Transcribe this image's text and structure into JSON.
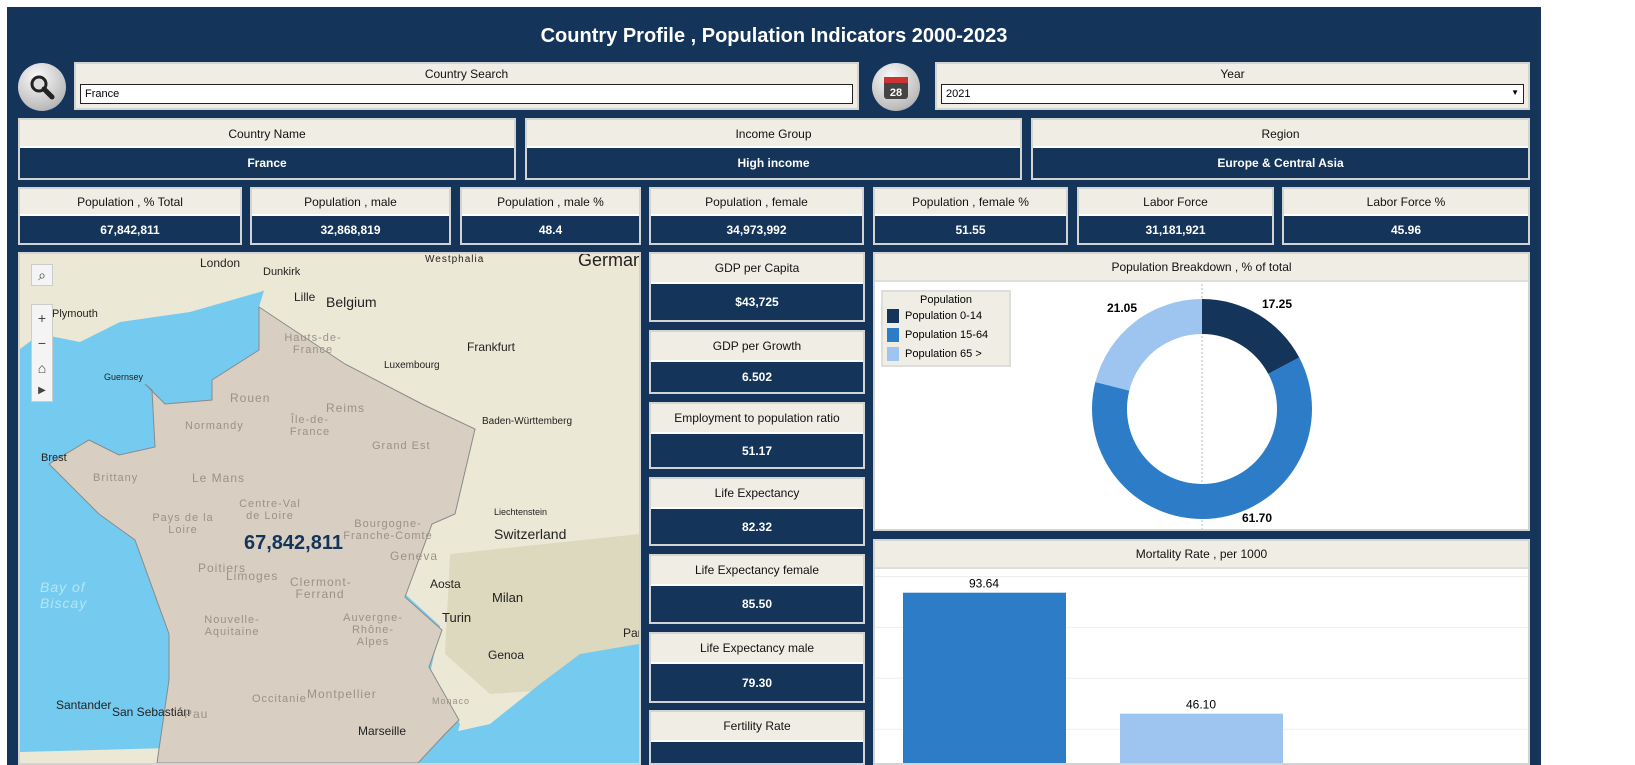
{
  "title": "Country Profile , Population Indicators 2000-2023",
  "search": {
    "label": "Country Search",
    "value": "France",
    "icon": "magnifier-icon"
  },
  "year": {
    "label": "Year",
    "value": "2021",
    "icon": "calendar-icon",
    "calendar_day": "28"
  },
  "info": [
    {
      "label": "Country Name",
      "value": "France"
    },
    {
      "label": "Income Group",
      "value": "High income"
    },
    {
      "label": "Region",
      "value": "Europe & Central Asia"
    }
  ],
  "kpis": [
    {
      "label": "Population , % Total",
      "value": "67,842,811"
    },
    {
      "label": "Population , male",
      "value": "32,868,819"
    },
    {
      "label": "Population , male %",
      "value": "48.4"
    },
    {
      "label": "Population , female",
      "value": "34,973,992"
    },
    {
      "label": "Population , female %",
      "value": "51.55"
    },
    {
      "label": "Labor Force",
      "value": "31,181,921"
    },
    {
      "label": "Labor Force %",
      "value": "45.96"
    }
  ],
  "side_kpis": [
    {
      "label": "GDP per Capita",
      "value": "$43,725"
    },
    {
      "label": "GDP per Growth",
      "value": "6.502"
    },
    {
      "label": "Employment to population ratio",
      "value": "51.17"
    },
    {
      "label": "Life Expectancy",
      "value": "82.32"
    },
    {
      "label": "Life Expectancy female",
      "value": "85.50"
    },
    {
      "label": "Life Expectancy male",
      "value": "79.30"
    },
    {
      "label": "Fertility Rate",
      "value": ""
    }
  ],
  "map": {
    "value_label": "67,842,811",
    "places": [
      "London",
      "Dunkirk",
      "Lille",
      "Belgium",
      "Westphalia",
      "Germany",
      "Plymouth",
      "Guernsey",
      "Frankfurt",
      "Luxembourg",
      "Rouen",
      "Reims",
      "Normandy",
      "Grand Est",
      "Baden-Württemberg",
      "Brest",
      "Brittany",
      "Le Mans",
      "Centre-Val de Loire",
      "Pays de la Loire",
      "Bourgogne-Franche-Comté",
      "Liechtenstein",
      "Switzerland",
      "Poitiers",
      "Geneva",
      "Clermont-Ferrand",
      "Limoges",
      "Aosta",
      "Milan",
      "Turin",
      "Nouvelle-Aquitaine",
      "Auvergne-Rhône-Alpes",
      "Genoa",
      "Santander",
      "San Sebastián",
      "Pau",
      "Occitanie",
      "Montpellier",
      "Monaco",
      "Marseille",
      "Bay of Biscay",
      "Hauts-de-France",
      "Île-de-France",
      "Par"
    ],
    "colors": {
      "sea": "#74cbef",
      "land": "#ece8d6",
      "country": "#d8cfc2"
    }
  },
  "chart_data": [
    {
      "type": "pie",
      "title": "Population Breakdown , % of total",
      "legend_title": "Population",
      "legend_position": "top-left",
      "categories": [
        "Population 0-14",
        "Population 15-64",
        "Population 65 >"
      ],
      "values": [
        17.25,
        61.7,
        21.05
      ],
      "value_labels": [
        "17.25",
        "61.70",
        "21.05"
      ],
      "colors": [
        "#14345a",
        "#2c7cc8",
        "#9ec5ef"
      ],
      "donut": true
    },
    {
      "type": "bar",
      "title": "Mortality Rate , per 1000",
      "values": [
        93.64,
        46.1
      ],
      "value_labels": [
        "93.64",
        "46.10"
      ],
      "colors": [
        "#2c7cc8",
        "#9ec5ef"
      ],
      "ylim": [
        0,
        100
      ],
      "grid": true
    }
  ]
}
